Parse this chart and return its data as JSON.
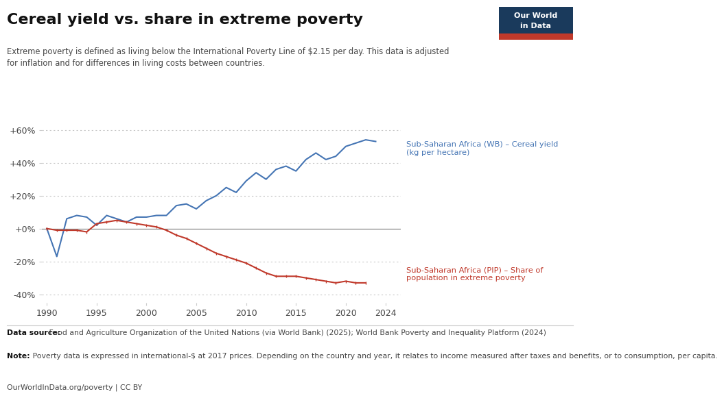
{
  "title": "Cereal yield vs. share in extreme poverty",
  "subtitle": "Extreme poverty is defined as living below the International Poverty Line of $2.15 per day. This data is adjusted\nfor inflation and for differences in living costs between countries.",
  "ylim": [
    -0.45,
    0.7
  ],
  "yticks": [
    -0.4,
    -0.2,
    0.0,
    0.2,
    0.4,
    0.6
  ],
  "ytick_labels": [
    "-40%",
    "-20%",
    "+0%",
    "+20%",
    "+40%",
    "+60%"
  ],
  "xlim": [
    1989.5,
    2025.5
  ],
  "xticks": [
    1990,
    1995,
    2000,
    2005,
    2010,
    2015,
    2020,
    2024
  ],
  "background_color": "#ffffff",
  "grid_color": "#c8c8c8",
  "zero_line_color": "#888888",
  "cereal_color": "#4575b4",
  "poverty_color": "#c0392b",
  "cereal_label": "Sub-Saharan Africa (WB) – Cereal yield\n(kg per hectare)",
  "poverty_label": "Sub-Saharan Africa (PIP) – Share of\npopulation in extreme poverty",
  "datasource_bold": "Data source:",
  "datasource_normal": " Food and Agriculture Organization of the United Nations (via World Bank) (2025); World Bank Poverty and Inequality Platform (2024)",
  "note_bold": "Note:",
  "note_normal": " Poverty data is expressed in international-$ at 2017 prices. Depending on the country and year, it relates to income measured after taxes and benefits, or to consumption, per capita.",
  "license": "OurWorldInData.org/poverty | CC BY",
  "cereal_years": [
    1990,
    1991,
    1992,
    1993,
    1994,
    1995,
    1996,
    1997,
    1998,
    1999,
    2000,
    2001,
    2002,
    2003,
    2004,
    2005,
    2006,
    2007,
    2008,
    2009,
    2010,
    2011,
    2012,
    2013,
    2014,
    2015,
    2016,
    2017,
    2018,
    2019,
    2020,
    2021,
    2022,
    2023
  ],
  "cereal_values": [
    0.0,
    -0.17,
    0.06,
    0.08,
    0.07,
    0.02,
    0.08,
    0.06,
    0.04,
    0.07,
    0.07,
    0.08,
    0.08,
    0.14,
    0.15,
    0.12,
    0.17,
    0.2,
    0.25,
    0.22,
    0.29,
    0.34,
    0.3,
    0.36,
    0.38,
    0.35,
    0.42,
    0.46,
    0.42,
    0.44,
    0.5,
    0.52,
    0.54,
    0.53
  ],
  "poverty_years": [
    1990,
    1991,
    1992,
    1993,
    1994,
    1995,
    1996,
    1997,
    1998,
    1999,
    2000,
    2001,
    2002,
    2003,
    2004,
    2005,
    2006,
    2007,
    2008,
    2009,
    2010,
    2011,
    2012,
    2013,
    2014,
    2015,
    2016,
    2017,
    2018,
    2019,
    2020,
    2021,
    2022
  ],
  "poverty_values": [
    0.0,
    -0.01,
    -0.01,
    -0.01,
    -0.02,
    0.03,
    0.04,
    0.05,
    0.04,
    0.03,
    0.02,
    0.01,
    -0.01,
    -0.04,
    -0.06,
    -0.09,
    -0.12,
    -0.15,
    -0.17,
    -0.19,
    -0.21,
    -0.24,
    -0.27,
    -0.29,
    -0.29,
    -0.29,
    -0.3,
    -0.31,
    -0.32,
    -0.33,
    -0.32,
    -0.33,
    -0.33
  ],
  "owid_box_color": "#1a3a5c",
  "owid_box_red": "#c0392b"
}
